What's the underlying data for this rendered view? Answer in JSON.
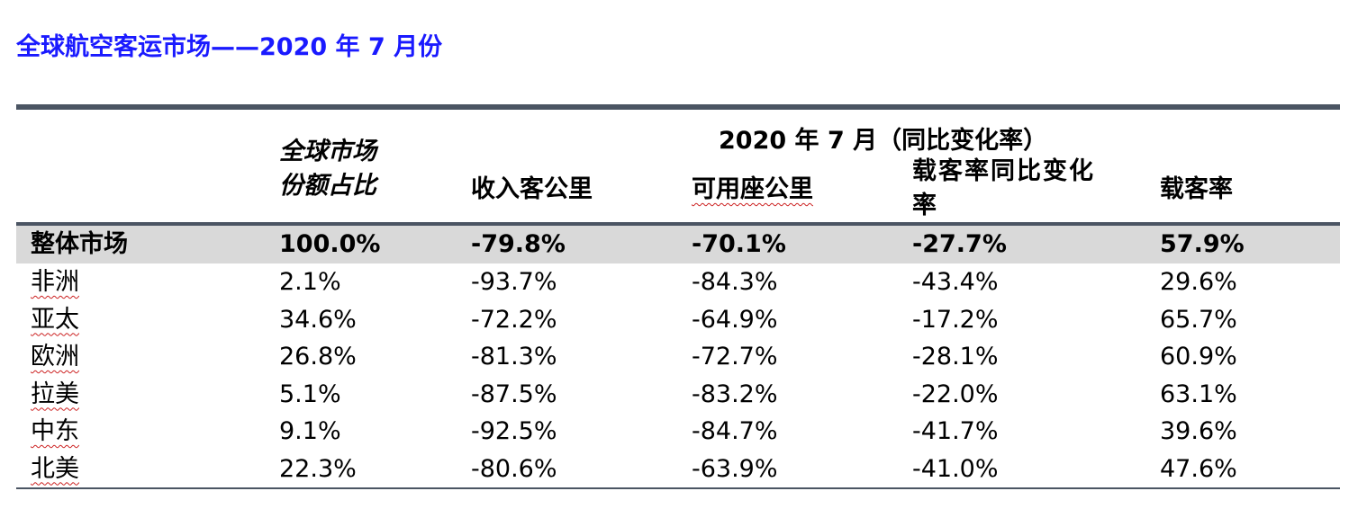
{
  "title": "全球航空客运市场——2020 年 7 月份",
  "table": {
    "group_header": "2020 年 7 月（同比变化率）",
    "columns": {
      "share_line1": "全球市场",
      "share_line2": "份额占比",
      "rpk": "收入客公里",
      "ask": "可用座公里",
      "plf_change_line1": "载客率同比变化",
      "plf_change_line2": "率",
      "plf": "载客率"
    },
    "total": {
      "region": "整体市场",
      "share": "100.0%",
      "rpk": "-79.8%",
      "ask": "-70.1%",
      "plf_change": "-27.7%",
      "plf": "57.9%"
    },
    "rows": [
      {
        "region": "非洲",
        "share": "2.1%",
        "rpk": "-93.7%",
        "ask": "-84.3%",
        "plf_change": "-43.4%",
        "plf": "29.6%"
      },
      {
        "region": "亚太",
        "share": "34.6%",
        "rpk": "-72.2%",
        "ask": "-64.9%",
        "plf_change": "-17.2%",
        "plf": "65.7%"
      },
      {
        "region": "欧洲",
        "share": "26.8%",
        "rpk": "-81.3%",
        "ask": "-72.7%",
        "plf_change": "-28.1%",
        "plf": "60.9%"
      },
      {
        "region": "拉美",
        "share": "5.1%",
        "rpk": "-87.5%",
        "ask": "-83.2%",
        "plf_change": "-22.0%",
        "plf": "63.1%"
      },
      {
        "region": "中东",
        "share": "9.1%",
        "rpk": "-92.5%",
        "ask": "-84.7%",
        "plf_change": "-41.7%",
        "plf": "39.6%"
      },
      {
        "region": "北美",
        "share": "22.3%",
        "rpk": "-80.6%",
        "ask": "-63.9%",
        "plf_change": "-41.0%",
        "plf": "47.6%"
      }
    ]
  },
  "colors": {
    "title": "#1a1aff",
    "rule": "#4b5563",
    "total_row_bg": "#d9d9d9",
    "spellcheck_underline": "#cc2222"
  }
}
